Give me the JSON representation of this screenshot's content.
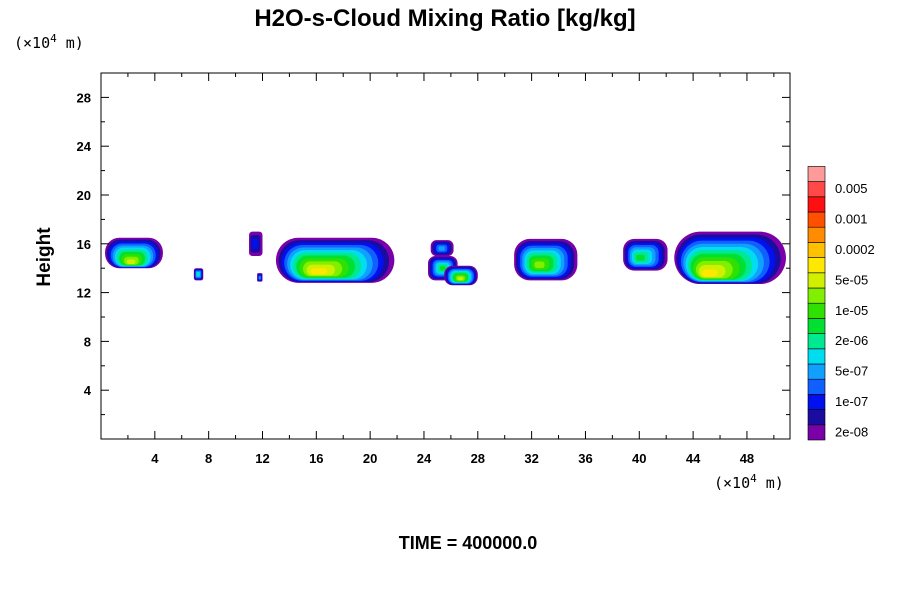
{
  "chart_data": {
    "type": "heatmap",
    "title": "H2O-s-Cloud Mixing Ratio [kg/kg]",
    "ylabel": "Height",
    "y_unit": {
      "prefix": "(×10",
      "exponent": "4",
      "suffix": " m)"
    },
    "x_unit": {
      "prefix": "(×10",
      "exponent": "4",
      "suffix": " m)"
    },
    "footer": "TIME = 400000.0",
    "xlim": [
      0,
      51.2
    ],
    "ylim": [
      0,
      30
    ],
    "x_ticks": [
      4,
      8,
      12,
      16,
      20,
      24,
      28,
      32,
      36,
      40,
      44,
      48
    ],
    "x_tick_labels": [
      "4",
      "8",
      "12",
      "16",
      "20",
      "24",
      "28",
      "32",
      "36",
      "40",
      "44",
      "48"
    ],
    "y_ticks": [
      4,
      8,
      12,
      16,
      20,
      24,
      28
    ],
    "y_tick_labels": [
      "4",
      "8",
      "12",
      "16",
      "20",
      "24",
      "28"
    ],
    "grid": false,
    "legend_position": "right",
    "color_levels": [
      {
        "color": "#7a00a8",
        "label": "2e-08"
      },
      {
        "color": "#1a0ca0",
        "label": ""
      },
      {
        "color": "#0010ee",
        "label": "1e-07"
      },
      {
        "color": "#1060ff",
        "label": ""
      },
      {
        "color": "#10a0ff",
        "label": "5e-07"
      },
      {
        "color": "#00dcf0",
        "label": ""
      },
      {
        "color": "#00e890",
        "label": "2e-06"
      },
      {
        "color": "#00e030",
        "label": ""
      },
      {
        "color": "#30e000",
        "label": "1e-05"
      },
      {
        "color": "#80f000",
        "label": ""
      },
      {
        "color": "#d0f000",
        "label": "5e-05"
      },
      {
        "color": "#ffe800",
        "label": ""
      },
      {
        "color": "#ffc000",
        "label": "0.0002"
      },
      {
        "color": "#ff8c00",
        "label": ""
      },
      {
        "color": "#ff5000",
        "label": "0.001"
      },
      {
        "color": "#ff1010",
        "label": ""
      },
      {
        "color": "#ff4848",
        "label": "0.005"
      },
      {
        "color": "#ff9a9a",
        "label": ""
      }
    ],
    "cloud_fields": [
      {
        "x0": 0.3,
        "x1": 4.6,
        "ytop": 16.5,
        "ybase": 14.0,
        "max_level": 10,
        "core_x": 2.2,
        "core_y": 14.4
      },
      {
        "x0": 6.9,
        "x1": 7.6,
        "ytop": 14.0,
        "ybase": 13.0,
        "max_level": 6,
        "core_x": 7.2,
        "core_y": 13.5
      },
      {
        "x0": 11.0,
        "x1": 12.0,
        "ytop": 17.0,
        "ybase": 15.0,
        "max_level": 2,
        "core_x": 11.4,
        "core_y": 16.0
      },
      {
        "x0": 11.6,
        "x1": 12.0,
        "ytop": 13.6,
        "ybase": 12.9,
        "max_level": 4,
        "core_x": 11.8,
        "core_y": 13.2
      },
      {
        "x0": 13.0,
        "x1": 21.8,
        "ytop": 16.5,
        "ybase": 12.8,
        "max_level": 11,
        "core_x": 16.0,
        "core_y": 13.6
      },
      {
        "x0": 24.5,
        "x1": 26.2,
        "ytop": 16.3,
        "ybase": 15.0,
        "max_level": 4,
        "core_x": 25.3,
        "core_y": 15.6
      },
      {
        "x0": 24.3,
        "x1": 26.5,
        "ytop": 15.0,
        "ybase": 13.0,
        "max_level": 7,
        "core_x": 25.4,
        "core_y": 14.0
      },
      {
        "x0": 25.5,
        "x1": 28.0,
        "ytop": 14.2,
        "ybase": 12.6,
        "max_level": 10,
        "core_x": 26.7,
        "core_y": 13.1
      },
      {
        "x0": 30.7,
        "x1": 35.4,
        "ytop": 16.4,
        "ybase": 13.0,
        "max_level": 9,
        "core_x": 32.5,
        "core_y": 14.2
      },
      {
        "x0": 38.8,
        "x1": 42.1,
        "ytop": 16.4,
        "ybase": 13.8,
        "max_level": 7,
        "core_x": 40.0,
        "core_y": 14.8
      },
      {
        "x0": 42.6,
        "x1": 50.9,
        "ytop": 17.0,
        "ybase": 12.7,
        "max_level": 11,
        "core_x": 45.0,
        "core_y": 13.4
      }
    ]
  }
}
